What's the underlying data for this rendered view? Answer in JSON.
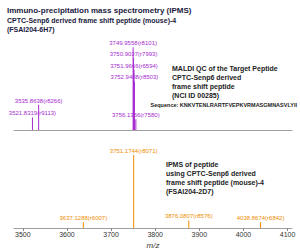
{
  "chart_data": [
    {
      "type": "bar",
      "title": "Immuno-precipitation mass spectrometry (IPMS)",
      "subtitle": [
        "CPTC-Senp6 derived frame shift peptide (mouse)-4",
        "(FSAI204-6H7)"
      ],
      "annotation": [
        "MALDI QC of the Target Peptide",
        "CPTC-Senp6 derived",
        "frame shift peptide",
        "(NCI ID 00285)"
      ],
      "sequence": "Sequence: KNKVTENLRARTFVEPKVRMASGMNASVLYII",
      "x": [
        3521.8319,
        3535.8638,
        3749.9558,
        3750.9037,
        3751.9666,
        3752.9488,
        3756.1366
      ],
      "values": [
        14,
        28,
        92,
        80,
        67,
        54,
        12
      ],
      "peak_labels": [
        "3521.8319(r9113)",
        "3535.8638(r8266)",
        "3749.9558(r8101)",
        "3750.9037(r7993)",
        "3751.9666(r6594)",
        "3752.9488(r8503)",
        "3756.1366(r7580)"
      ],
      "color": "#a62bd0",
      "xlim": [
        3480,
        4110
      ],
      "xticks": [
        3500,
        3600,
        3700,
        3800,
        3900,
        4000,
        4100
      ],
      "ylim": [
        0,
        100
      ],
      "tick_labels": false
    },
    {
      "type": "bar",
      "annotation": [
        "IPMS of peptide",
        "using CPTC-Senp6 derived",
        "frame shift peptide (mouse)-4",
        "(FSAI204-2D7)"
      ],
      "x": [
        3637.1288,
        3751.1744,
        3876.0807,
        4038.8674
      ],
      "values": [
        8,
        96,
        10,
        8
      ],
      "peak_labels": [
        "3637.1288(r6007)",
        "3751.1744(r8071)",
        "3876.0807(r8576)",
        "4038.8674(r6842)"
      ],
      "color": "#f08c00",
      "xlim": [
        3480,
        4110
      ],
      "xticks": [
        3500,
        3600,
        3700,
        3800,
        3900,
        4000,
        4100
      ],
      "ylim": [
        0,
        100
      ],
      "xlabel": "m/z",
      "tick_labels": "x"
    }
  ]
}
